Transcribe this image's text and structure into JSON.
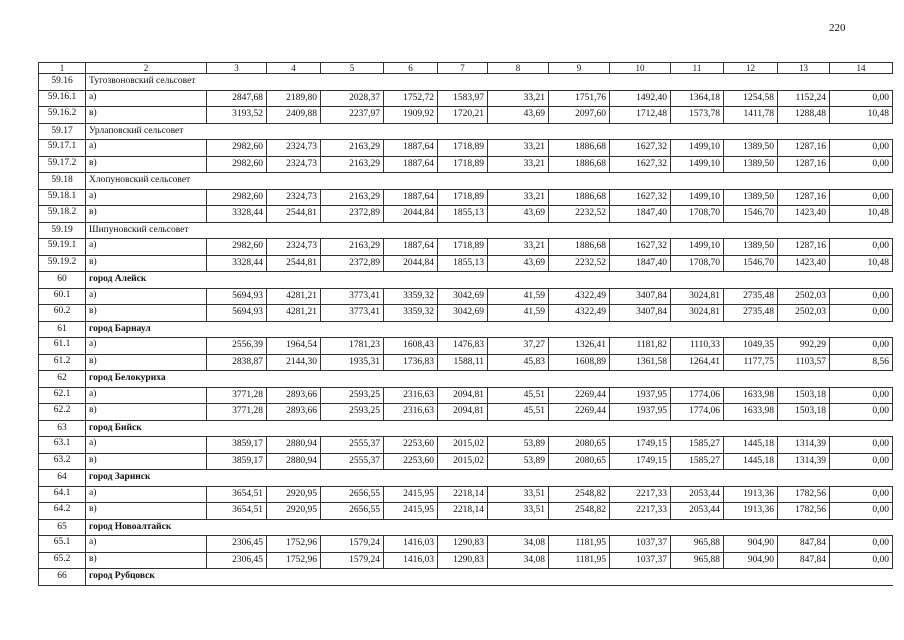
{
  "page_number": "220",
  "table": {
    "headers": [
      "1",
      "2",
      "3",
      "4",
      "5",
      "6",
      "7",
      "8",
      "9",
      "10",
      "11",
      "12",
      "13",
      "14"
    ],
    "groups": [
      {
        "code": "59.16",
        "name": "Тугозвоновский сельсовет",
        "bold": false,
        "rows": [
          {
            "code": "59.16.1",
            "label": "а)",
            "values": [
              "2847,68",
              "2189,80",
              "2028,37",
              "1752,72",
              "1583,97",
              "33,21",
              "1751,76",
              "1492,40",
              "1364,18",
              "1254,58",
              "1152,24",
              "0,00"
            ]
          },
          {
            "code": "59.16.2",
            "label": "в)",
            "values": [
              "3193,52",
              "2409,88",
              "2237,97",
              "1909,92",
              "1720,21",
              "43,69",
              "2097,60",
              "1712,48",
              "1573,78",
              "1411,78",
              "1288,48",
              "10,48"
            ]
          }
        ]
      },
      {
        "code": "59.17",
        "name": "Урлаповский сельсовет",
        "bold": false,
        "rows": [
          {
            "code": "59.17.1",
            "label": "а)",
            "values": [
              "2982,60",
              "2324,73",
              "2163,29",
              "1887,64",
              "1718,89",
              "33,21",
              "1886,68",
              "1627,32",
              "1499,10",
              "1389,50",
              "1287,16",
              "0,00"
            ]
          },
          {
            "code": "59.17.2",
            "label": "в)",
            "values": [
              "2982,60",
              "2324,73",
              "2163,29",
              "1887,64",
              "1718,89",
              "33,21",
              "1886,68",
              "1627,32",
              "1499,10",
              "1389,50",
              "1287,16",
              "0,00"
            ]
          }
        ]
      },
      {
        "code": "59.18",
        "name": "Хлопуновский сельсовет",
        "bold": false,
        "rows": [
          {
            "code": "59.18.1",
            "label": "а)",
            "values": [
              "2982,60",
              "2324,73",
              "2163,29",
              "1887,64",
              "1718,89",
              "33,21",
              "1886,68",
              "1627,32",
              "1499,10",
              "1389,50",
              "1287,16",
              "0,00"
            ]
          },
          {
            "code": "59.18.2",
            "label": "в)",
            "values": [
              "3328,44",
              "2544,81",
              "2372,89",
              "2044,84",
              "1855,13",
              "43,69",
              "2232,52",
              "1847,40",
              "1708,70",
              "1546,70",
              "1423,40",
              "10,48"
            ]
          }
        ]
      },
      {
        "code": "59.19",
        "name": "Шипуновский сельсовет",
        "bold": false,
        "rows": [
          {
            "code": "59.19.1",
            "label": "а)",
            "values": [
              "2982,60",
              "2324,73",
              "2163,29",
              "1887,64",
              "1718,89",
              "33,21",
              "1886,68",
              "1627,32",
              "1499,10",
              "1389,50",
              "1287,16",
              "0,00"
            ]
          },
          {
            "code": "59.19.2",
            "label": "в)",
            "values": [
              "3328,44",
              "2544,81",
              "2372,89",
              "2044,84",
              "1855,13",
              "43,69",
              "2232,52",
              "1847,40",
              "1708,70",
              "1546,70",
              "1423,40",
              "10,48"
            ]
          }
        ]
      },
      {
        "code": "60",
        "name": "город Алейск",
        "bold": true,
        "rows": [
          {
            "code": "60.1",
            "label": "а)",
            "values": [
              "5694,93",
              "4281,21",
              "3773,41",
              "3359,32",
              "3042,69",
              "41,59",
              "4322,49",
              "3407,84",
              "3024,81",
              "2735,48",
              "2502,03",
              "0,00"
            ]
          },
          {
            "code": "60.2",
            "label": "в)",
            "values": [
              "5694,93",
              "4281,21",
              "3773,41",
              "3359,32",
              "3042,69",
              "41,59",
              "4322,49",
              "3407,84",
              "3024,81",
              "2735,48",
              "2502,03",
              "0,00"
            ]
          }
        ]
      },
      {
        "code": "61",
        "name": "город Барнаул",
        "bold": true,
        "rows": [
          {
            "code": "61.1",
            "label": "а)",
            "values": [
              "2556,39",
              "1964,54",
              "1781,23",
              "1608,43",
              "1476,83",
              "37,27",
              "1326,41",
              "1181,82",
              "1110,33",
              "1049,35",
              "992,29",
              "0,00"
            ]
          },
          {
            "code": "61.2",
            "label": "в)",
            "values": [
              "2838,87",
              "2144,30",
              "1935,31",
              "1736,83",
              "1588,11",
              "45,83",
              "1608,89",
              "1361,58",
              "1264,41",
              "1177,75",
              "1103,57",
              "8,56"
            ]
          }
        ]
      },
      {
        "code": "62",
        "name": "город Белокуриха",
        "bold": true,
        "rows": [
          {
            "code": "62.1",
            "label": "а)",
            "values": [
              "3771,28",
              "2893,66",
              "2593,25",
              "2316,63",
              "2094,81",
              "45,51",
              "2269,44",
              "1937,95",
              "1774,06",
              "1633,98",
              "1503,18",
              "0,00"
            ]
          },
          {
            "code": "62.2",
            "label": "в)",
            "values": [
              "3771,28",
              "2893,66",
              "2593,25",
              "2316,63",
              "2094,81",
              "45,51",
              "2269,44",
              "1937,95",
              "1774,06",
              "1633,98",
              "1503,18",
              "0,00"
            ]
          }
        ]
      },
      {
        "code": "63",
        "name": "город Бийск",
        "bold": true,
        "rows": [
          {
            "code": "63.1",
            "label": "а)",
            "values": [
              "3859,17",
              "2880,94",
              "2555,37",
              "2253,60",
              "2015,02",
              "53,89",
              "2080,65",
              "1749,15",
              "1585,27",
              "1445,18",
              "1314,39",
              "0,00"
            ]
          },
          {
            "code": "63.2",
            "label": "в)",
            "values": [
              "3859,17",
              "2880,94",
              "2555,37",
              "2253,60",
              "2015,02",
              "53,89",
              "2080,65",
              "1749,15",
              "1585,27",
              "1445,18",
              "1314,39",
              "0,00"
            ]
          }
        ]
      },
      {
        "code": "64",
        "name": "город Заринск",
        "bold": true,
        "rows": [
          {
            "code": "64.1",
            "label": "а)",
            "values": [
              "3654,51",
              "2920,95",
              "2656,55",
              "2415,95",
              "2218,14",
              "33,51",
              "2548,82",
              "2217,33",
              "2053,44",
              "1913,36",
              "1782,56",
              "0,00"
            ]
          },
          {
            "code": "64.2",
            "label": "в)",
            "values": [
              "3654,51",
              "2920,95",
              "2656,55",
              "2415,95",
              "2218,14",
              "33,51",
              "2548,82",
              "2217,33",
              "2053,44",
              "1913,36",
              "1782,56",
              "0,00"
            ]
          }
        ]
      },
      {
        "code": "65",
        "name": "город Новоалтайск",
        "bold": true,
        "rows": [
          {
            "code": "65.1",
            "label": "а)",
            "values": [
              "2306,45",
              "1752,96",
              "1579,24",
              "1416,03",
              "1290,83",
              "34,08",
              "1181,95",
              "1037,37",
              "965,88",
              "904,90",
              "847,84",
              "0,00"
            ]
          },
          {
            "code": "65.2",
            "label": "в)",
            "values": [
              "2306,45",
              "1752,96",
              "1579,24",
              "1416,03",
              "1290,83",
              "34,08",
              "1181,95",
              "1037,37",
              "965,88",
              "904,90",
              "847,84",
              "0,00"
            ]
          }
        ]
      },
      {
        "code": "66",
        "name": "город Рубцовск",
        "bold": true,
        "rows": []
      }
    ]
  }
}
